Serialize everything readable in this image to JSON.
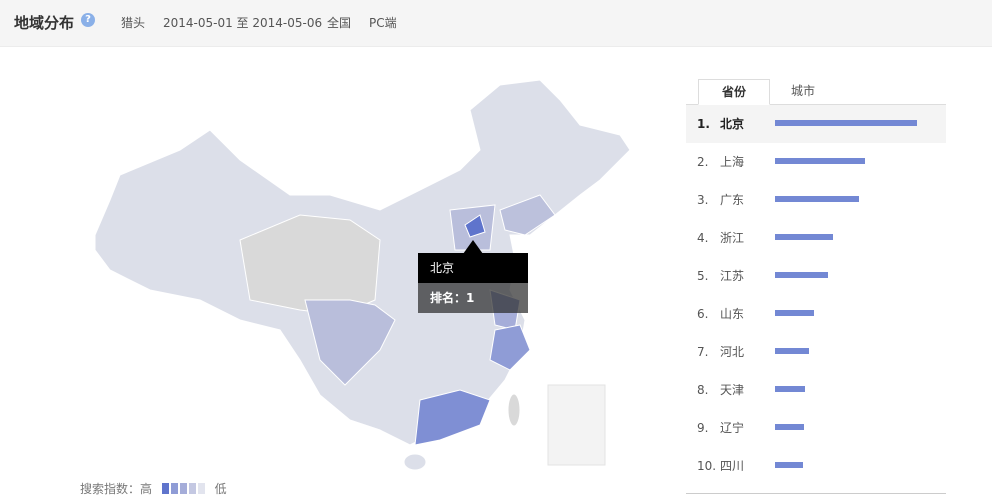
{
  "header": {
    "title": "地域分布",
    "help": "?",
    "keyword": "猎头",
    "date_range": "2014-05-01 至 2014-05-06",
    "region": "全国",
    "device": "PC端"
  },
  "tabs": [
    "省份",
    "城市"
  ],
  "ranking": [
    {
      "rank": "1.",
      "name": "北京",
      "value": 142
    },
    {
      "rank": "2.",
      "name": "上海",
      "value": 90
    },
    {
      "rank": "3.",
      "name": "广东",
      "value": 84
    },
    {
      "rank": "4.",
      "name": "浙江",
      "value": 58
    },
    {
      "rank": "5.",
      "name": "江苏",
      "value": 53
    },
    {
      "rank": "6.",
      "name": "山东",
      "value": 39
    },
    {
      "rank": "7.",
      "name": "河北",
      "value": 34
    },
    {
      "rank": "8.",
      "name": "天津",
      "value": 30
    },
    {
      "rank": "9.",
      "name": "辽宁",
      "value": 29
    },
    {
      "rank": "10.",
      "name": "四川",
      "value": 28
    }
  ],
  "tooltip": {
    "name": "北京",
    "rank_text": "排名：1"
  },
  "legend": {
    "high": "搜索指数：高",
    "low": "低"
  }
}
